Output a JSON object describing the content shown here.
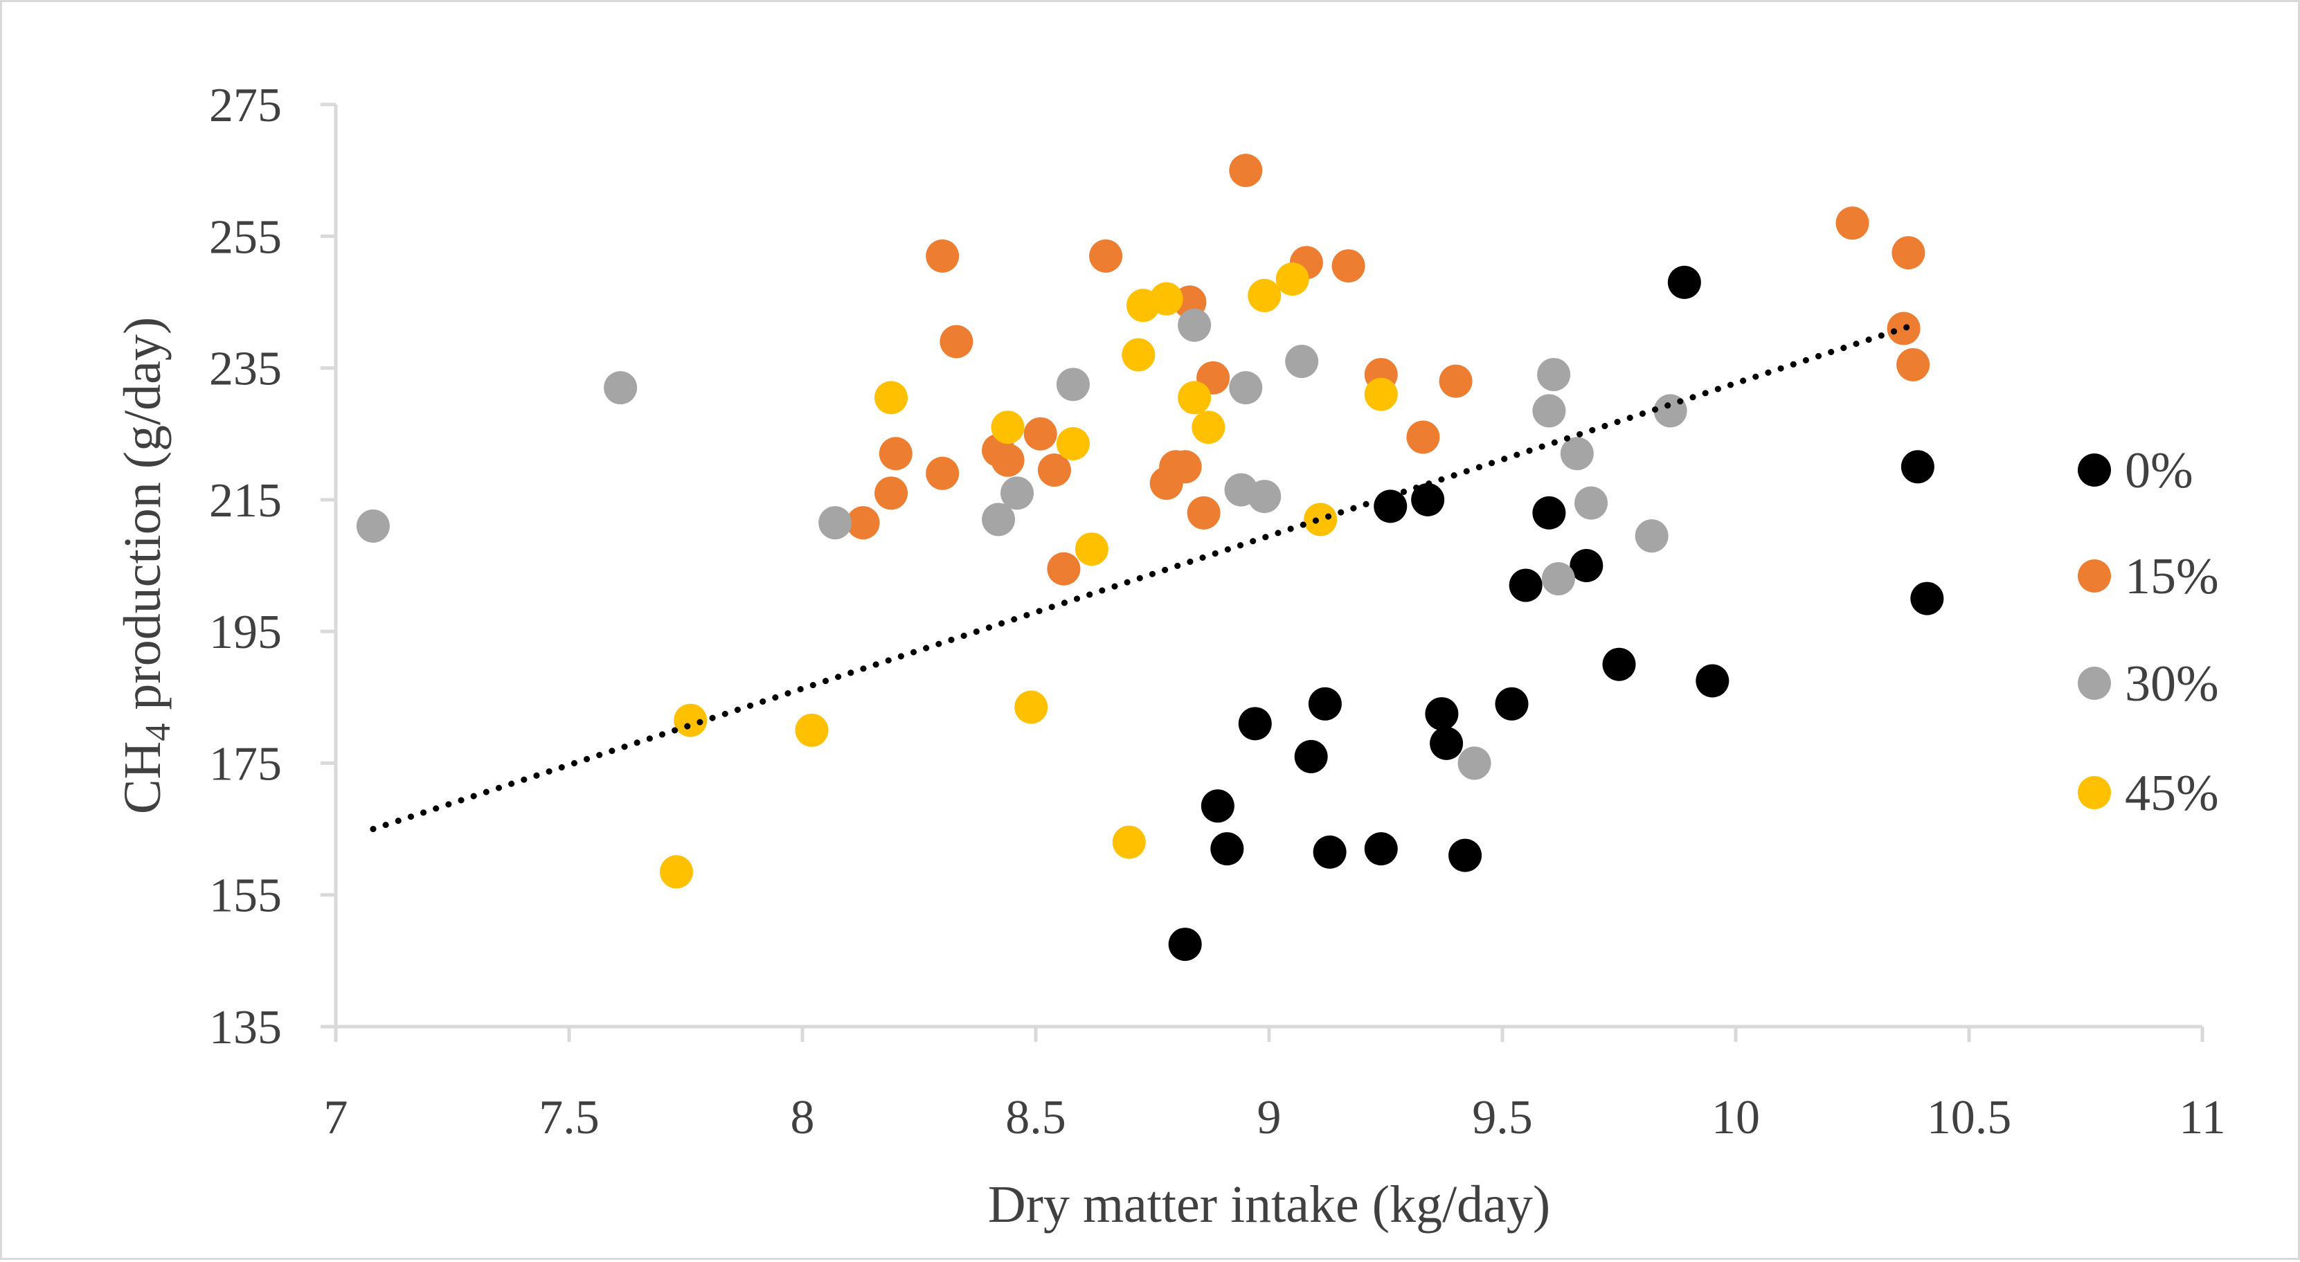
{
  "chart_data": {
    "type": "scatter",
    "title": "",
    "xlabel": "Dry matter intake (kg/day)",
    "ylabel": {
      "prefix": "CH",
      "subscript": "4",
      "suffix": " production (g/day)"
    },
    "xlim": [
      7,
      11
    ],
    "ylim": [
      135,
      275
    ],
    "xticks": [
      7,
      7.5,
      8,
      8.5,
      9,
      9.5,
      10,
      10.5,
      11
    ],
    "yticks": [
      135,
      155,
      175,
      195,
      215,
      235,
      255,
      275
    ],
    "grid": false,
    "legend_position": "right",
    "trendline": {
      "style": "dotted",
      "color": "#000000",
      "x": [
        7.08,
        10.38
      ],
      "y": [
        165,
        241.5
      ]
    },
    "series": [
      {
        "name": "0%",
        "color": "#000000",
        "points": [
          [
            8.82,
            147.5
          ],
          [
            8.89,
            168.5
          ],
          [
            8.91,
            162
          ],
          [
            8.97,
            181
          ],
          [
            9.09,
            176
          ],
          [
            9.12,
            184
          ],
          [
            9.13,
            161.5
          ],
          [
            9.24,
            162
          ],
          [
            9.26,
            214
          ],
          [
            9.34,
            215
          ],
          [
            9.37,
            182.5
          ],
          [
            9.38,
            178
          ],
          [
            9.42,
            161
          ],
          [
            9.52,
            184
          ],
          [
            9.55,
            202
          ],
          [
            9.6,
            213
          ],
          [
            9.68,
            205
          ],
          [
            9.75,
            190
          ],
          [
            9.89,
            248
          ],
          [
            9.95,
            187.5
          ],
          [
            10.39,
            220
          ],
          [
            10.41,
            200
          ]
        ]
      },
      {
        "name": "15%",
        "color": "#ed7d31",
        "points": [
          [
            8.13,
            211.5
          ],
          [
            8.19,
            216
          ],
          [
            8.2,
            222
          ],
          [
            8.3,
            219
          ],
          [
            8.3,
            252
          ],
          [
            8.33,
            239
          ],
          [
            8.42,
            222.5
          ],
          [
            8.44,
            221
          ],
          [
            8.51,
            225
          ],
          [
            8.54,
            219.5
          ],
          [
            8.56,
            204.5
          ],
          [
            8.65,
            252
          ],
          [
            8.78,
            217.5
          ],
          [
            8.8,
            220
          ],
          [
            8.82,
            220
          ],
          [
            8.83,
            245
          ],
          [
            8.86,
            213
          ],
          [
            8.88,
            233.5
          ],
          [
            8.95,
            265
          ],
          [
            9.08,
            251
          ],
          [
            9.17,
            250.5
          ],
          [
            9.24,
            234
          ],
          [
            9.33,
            224.5
          ],
          [
            9.4,
            233
          ],
          [
            10.25,
            257
          ],
          [
            10.36,
            241
          ],
          [
            10.37,
            252.5
          ],
          [
            10.38,
            235.5
          ]
        ]
      },
      {
        "name": "30%",
        "color": "#a5a5a5",
        "points": [
          [
            7.08,
            211
          ],
          [
            7.61,
            232
          ],
          [
            8.07,
            211.5
          ],
          [
            8.42,
            212
          ],
          [
            8.46,
            216
          ],
          [
            8.58,
            232.5
          ],
          [
            8.84,
            241.5
          ],
          [
            8.94,
            216.5
          ],
          [
            8.95,
            232
          ],
          [
            8.99,
            215.5
          ],
          [
            9.07,
            236
          ],
          [
            9.44,
            175
          ],
          [
            9.6,
            228.5
          ],
          [
            9.61,
            234
          ],
          [
            9.62,
            203
          ],
          [
            9.66,
            222
          ],
          [
            9.69,
            214.5
          ],
          [
            9.82,
            209.5
          ],
          [
            9.86,
            228.5
          ]
        ]
      },
      {
        "name": "45%",
        "color": "#ffc000",
        "points": [
          [
            7.73,
            158.5
          ],
          [
            7.76,
            181.5
          ],
          [
            8.02,
            180
          ],
          [
            8.19,
            230.5
          ],
          [
            8.44,
            226
          ],
          [
            8.49,
            183.5
          ],
          [
            8.58,
            223.5
          ],
          [
            8.62,
            207.5
          ],
          [
            8.7,
            163
          ],
          [
            8.72,
            237
          ],
          [
            8.73,
            244.5
          ],
          [
            8.78,
            245.5
          ],
          [
            8.84,
            230.5
          ],
          [
            8.87,
            226
          ],
          [
            8.99,
            246
          ],
          [
            9.05,
            248.5
          ],
          [
            9.11,
            212
          ],
          [
            9.24,
            231
          ]
        ]
      }
    ]
  }
}
